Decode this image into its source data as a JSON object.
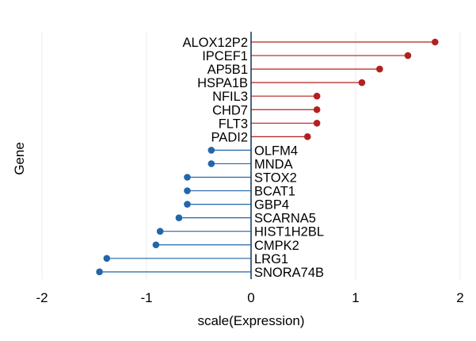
{
  "chart_data": {
    "type": "lollipop",
    "orientation": "horizontal",
    "xlabel": "scale(Expression)",
    "ylabel": "Gene",
    "xlim": [
      -2,
      2
    ],
    "x_ticks": [
      -2,
      -1,
      0,
      1,
      2
    ],
    "x_tick_labels": [
      "-2",
      "-1",
      "0",
      "1",
      "2"
    ],
    "grid": "vertical gridlines at major x ticks",
    "colors": {
      "positive": "#b2211f",
      "negative": "#2266aa",
      "grid": "#ebebeb",
      "zero_line": "#1d3f63"
    },
    "points": [
      {
        "gene": "ALOX12P2",
        "value": 1.76
      },
      {
        "gene": "IPCEF1",
        "value": 1.5
      },
      {
        "gene": "AP5B1",
        "value": 1.23
      },
      {
        "gene": "HSPA1B",
        "value": 1.06
      },
      {
        "gene": "NFIL3",
        "value": 0.63
      },
      {
        "gene": "CHD7",
        "value": 0.63
      },
      {
        "gene": "FLT3",
        "value": 0.63
      },
      {
        "gene": "PADI2",
        "value": 0.54
      },
      {
        "gene": "OLFM4",
        "value": -0.38
      },
      {
        "gene": "MNDA",
        "value": -0.38
      },
      {
        "gene": "STOX2",
        "value": -0.61
      },
      {
        "gene": "BCAT1",
        "value": -0.61
      },
      {
        "gene": "GBP4",
        "value": -0.61
      },
      {
        "gene": "SCARNA5",
        "value": -0.69
      },
      {
        "gene": "HIST1H2BL",
        "value": -0.87
      },
      {
        "gene": "CMPK2",
        "value": -0.91
      },
      {
        "gene": "LRG1",
        "value": -1.38
      },
      {
        "gene": "SNORA74B",
        "value": -1.45
      }
    ]
  }
}
